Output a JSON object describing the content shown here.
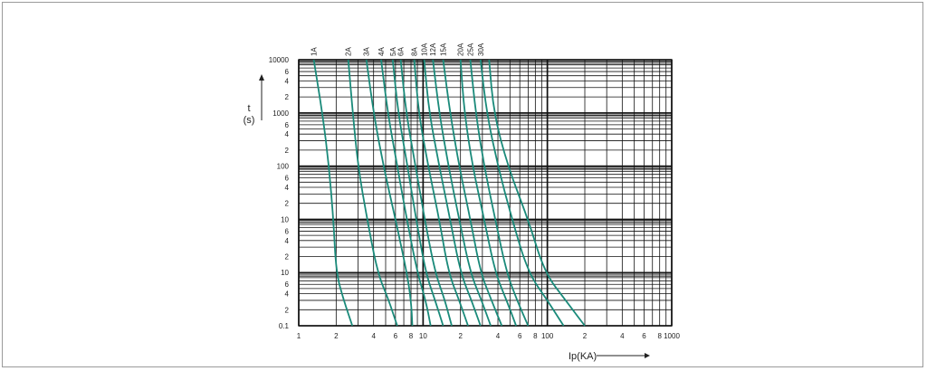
{
  "chart_data": {
    "type": "line",
    "x_scale": "log",
    "y_scale": "log",
    "xlim": [
      1,
      1000
    ],
    "ylim": [
      0.1,
      10000
    ],
    "grid": true,
    "xlabel": "Ip(KA)",
    "ylabel_line1": "t",
    "ylabel_line2": "(s)",
    "x_tick_labels": [
      {
        "v": 1,
        "t": "1"
      },
      {
        "v": 2,
        "t": "2"
      },
      {
        "v": 4,
        "t": "4"
      },
      {
        "v": 6,
        "t": "6"
      },
      {
        "v": 8,
        "t": "8"
      },
      {
        "v": 10,
        "t": "10"
      },
      {
        "v": 20,
        "t": "2"
      },
      {
        "v": 40,
        "t": "4"
      },
      {
        "v": 60,
        "t": "6"
      },
      {
        "v": 80,
        "t": "8"
      },
      {
        "v": 100,
        "t": "100"
      },
      {
        "v": 200,
        "t": "2"
      },
      {
        "v": 400,
        "t": "4"
      },
      {
        "v": 600,
        "t": "6"
      },
      {
        "v": 800,
        "t": "8"
      },
      {
        "v": 1000,
        "t": "1000"
      }
    ],
    "y_tick_labels": [
      {
        "v": 10000,
        "t": "10000"
      },
      {
        "v": 6000,
        "t": "6"
      },
      {
        "v": 4000,
        "t": "4"
      },
      {
        "v": 2000,
        "t": "2"
      },
      {
        "v": 1000,
        "t": "1000"
      },
      {
        "v": 600,
        "t": "6"
      },
      {
        "v": 400,
        "t": "4"
      },
      {
        "v": 200,
        "t": "2"
      },
      {
        "v": 100,
        "t": "100"
      },
      {
        "v": 60,
        "t": "6"
      },
      {
        "v": 40,
        "t": "4"
      },
      {
        "v": 20,
        "t": "2"
      },
      {
        "v": 10,
        "t": "10"
      },
      {
        "v": 6,
        "t": "6"
      },
      {
        "v": 4,
        "t": "4"
      },
      {
        "v": 2,
        "t": "2"
      },
      {
        "v": 1,
        "t": "10"
      },
      {
        "v": 0.6,
        "t": "6"
      },
      {
        "v": 0.4,
        "t": "4"
      },
      {
        "v": 0.2,
        "t": "2"
      },
      {
        "v": 0.1,
        "t": "0.1"
      }
    ],
    "line_color": "#1a8a7a",
    "series": [
      {
        "name": "1A",
        "points": [
          [
            1.32,
            10000
          ],
          [
            1.55,
            1000
          ],
          [
            1.75,
            100
          ],
          [
            1.9,
            10
          ],
          [
            2.0,
            1
          ],
          [
            2.3,
            0.3
          ],
          [
            2.7,
            0.1
          ]
        ]
      },
      {
        "name": "2A",
        "points": [
          [
            2.5,
            10000
          ],
          [
            2.72,
            1000
          ],
          [
            3.0,
            100
          ],
          [
            3.55,
            10
          ],
          [
            4.3,
            1
          ],
          [
            5.3,
            0.3
          ],
          [
            6.2,
            0.1
          ]
        ]
      },
      {
        "name": "3A",
        "points": [
          [
            3.5,
            10000
          ],
          [
            4.0,
            1000
          ],
          [
            4.8,
            100
          ],
          [
            6.0,
            10
          ],
          [
            7.4,
            1
          ],
          [
            8.0,
            0.3
          ],
          [
            8.2,
            0.1
          ]
        ]
      },
      {
        "name": "4A",
        "points": [
          [
            4.6,
            10000
          ],
          [
            5.2,
            1000
          ],
          [
            6.2,
            100
          ],
          [
            7.4,
            10
          ],
          [
            9.0,
            1
          ],
          [
            10.5,
            0.3
          ],
          [
            11.5,
            0.1
          ]
        ]
      },
      {
        "name": "5A",
        "points": [
          [
            5.7,
            10000
          ],
          [
            6.3,
            1000
          ],
          [
            7.5,
            100
          ],
          [
            8.8,
            10
          ],
          [
            10.5,
            1
          ],
          [
            12.5,
            0.3
          ],
          [
            14.5,
            0.1
          ]
        ]
      },
      {
        "name": "6A",
        "points": [
          [
            6.6,
            10000
          ],
          [
            7.3,
            1000
          ],
          [
            8.7,
            100
          ],
          [
            10.3,
            10
          ],
          [
            12.5,
            1
          ],
          [
            15.0,
            0.3
          ],
          [
            17.0,
            0.1
          ]
        ]
      },
      {
        "name": "8A",
        "points": [
          [
            8.5,
            10000
          ],
          [
            9.2,
            1000
          ],
          [
            11.0,
            100
          ],
          [
            13.5,
            10
          ],
          [
            16.0,
            1
          ],
          [
            19.5,
            0.3
          ],
          [
            23.0,
            0.1
          ]
        ]
      },
      {
        "name": "10A",
        "points": [
          [
            10.2,
            10000
          ],
          [
            11.2,
            1000
          ],
          [
            13.5,
            100
          ],
          [
            16.5,
            10
          ],
          [
            20.0,
            1
          ],
          [
            24.5,
            0.3
          ],
          [
            29.0,
            0.1
          ]
        ]
      },
      {
        "name": "12A",
        "points": [
          [
            12.0,
            10000
          ],
          [
            13.5,
            1000
          ],
          [
            16.0,
            100
          ],
          [
            19.5,
            10
          ],
          [
            24.0,
            1
          ],
          [
            29.5,
            0.3
          ],
          [
            35.0,
            0.1
          ]
        ]
      },
      {
        "name": "15A",
        "points": [
          [
            14.5,
            10000
          ],
          [
            16.5,
            1000
          ],
          [
            19.5,
            100
          ],
          [
            24.0,
            10
          ],
          [
            29.0,
            1
          ],
          [
            35.5,
            0.3
          ],
          [
            43.0,
            0.1
          ]
        ]
      },
      {
        "name": "20A",
        "points": [
          [
            20.0,
            10000
          ],
          [
            21.5,
            1000
          ],
          [
            25.0,
            100
          ],
          [
            31.0,
            10
          ],
          [
            38.0,
            1
          ],
          [
            47.0,
            0.3
          ],
          [
            56.0,
            0.1
          ]
        ]
      },
      {
        "name": "25A",
        "points": [
          [
            24.0,
            10000
          ],
          [
            26.5,
            1000
          ],
          [
            31.0,
            100
          ],
          [
            38.0,
            10
          ],
          [
            47.0,
            1
          ],
          [
            57.0,
            0.3
          ],
          [
            70.0,
            0.1
          ]
        ]
      },
      {
        "name": "30A",
        "points": [
          [
            29.0,
            10000
          ],
          [
            32.5,
            1000
          ],
          [
            40.0,
            100
          ],
          [
            52.0,
            10
          ],
          [
            70.0,
            1
          ],
          [
            100.0,
            0.3
          ],
          [
            135.0,
            0.1
          ]
        ]
      },
      {
        "name": "",
        "points": [
          [
            34.0,
            10000
          ],
          [
            37.0,
            1000
          ],
          [
            48.0,
            100
          ],
          [
            70.0,
            10
          ],
          [
            95.0,
            1
          ],
          [
            140.0,
            0.3
          ],
          [
            200.0,
            0.1
          ]
        ]
      }
    ]
  }
}
